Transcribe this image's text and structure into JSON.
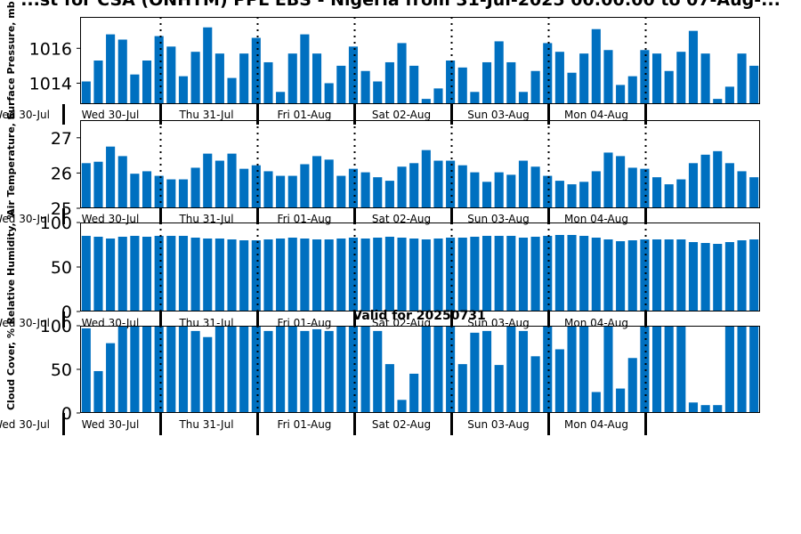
{
  "chart_data": {
    "type": "bar",
    "title": "...st for CSA (ONHTM) PPL EBS  - Nigeria from 31-Jul-2025 00:00:00 to 07-Aug-...",
    "subtitle": "Valid for 20250731",
    "days": [
      "Wed 30-Jul",
      "Thu 31-Jul",
      "Fri 01-Aug",
      "Sat 02-Aug",
      "Sun 03-Aug",
      "Mon 04-Aug"
    ],
    "panels": [
      {
        "ylabel": "Surface Pressure, mb",
        "ylim": [
          1012.8,
          1017.8
        ],
        "yticks": [
          1014,
          1016
        ],
        "values": [
          1014.1,
          1015.3,
          1016.8,
          1016.5,
          1014.5,
          1015.3,
          1016.7,
          1016.1,
          1014.4,
          1015.8,
          1017.2,
          1015.7,
          1014.3,
          1015.7,
          1016.6,
          1015.2,
          1013.5,
          1015.7,
          1016.8,
          1015.7,
          1014.0,
          1015.0,
          1016.1,
          1014.7,
          1014.1,
          1015.2,
          1016.3,
          1015.0,
          1013.1,
          1013.7,
          1015.3,
          1014.9,
          1013.5,
          1015.2,
          1016.4,
          1015.2,
          1013.5,
          1014.7,
          1016.3,
          1015.8,
          1014.6,
          1015.7,
          1017.1,
          1015.9,
          1013.9,
          1014.4,
          1015.9,
          1015.7,
          1014.7,
          1015.8,
          1017.0,
          1015.7,
          1013.1,
          1013.8,
          1015.7,
          1015.0
        ]
      },
      {
        "ylabel": "Air Temperature, C",
        "ylim": [
          25.0,
          27.5
        ],
        "yticks": [
          25,
          26,
          27
        ],
        "values": [
          26.28,
          26.32,
          26.75,
          26.48,
          25.98,
          26.05,
          25.92,
          25.82,
          25.82,
          26.15,
          26.55,
          26.35,
          26.55,
          26.12,
          26.22,
          26.05,
          25.92,
          25.92,
          26.25,
          26.48,
          26.38,
          25.92,
          26.12,
          26.02,
          25.88,
          25.78,
          26.18,
          26.28,
          26.65,
          26.35,
          26.35,
          26.22,
          26.02,
          25.75,
          26.02,
          25.95,
          26.35,
          26.18,
          25.92,
          25.78,
          25.68,
          25.75,
          26.05,
          26.58,
          26.48,
          26.15,
          26.12,
          25.88,
          25.68,
          25.82,
          26.28,
          26.52,
          26.62,
          26.28,
          26.05,
          25.88
        ]
      },
      {
        "ylabel": "Relative Humidity, %",
        "ylim": [
          0,
          100
        ],
        "yticks": [
          0,
          50,
          100
        ],
        "values": [
          85,
          84,
          82,
          84,
          85,
          84,
          85,
          85,
          85,
          83,
          82,
          82,
          81,
          80,
          80,
          81,
          82,
          83,
          82,
          81,
          81,
          82,
          83,
          82,
          83,
          84,
          83,
          82,
          81,
          82,
          83,
          83,
          84,
          85,
          85,
          85,
          83,
          84,
          85,
          86,
          86,
          85,
          83,
          81,
          79,
          80,
          81,
          81,
          81,
          81,
          78,
          77,
          76,
          78,
          80,
          81
        ]
      },
      {
        "ylabel": "Cloud Cover, %",
        "ylim": [
          0,
          100
        ],
        "yticks": [
          0,
          50,
          100
        ],
        "values": [
          97,
          48,
          80,
          100,
          100,
          100,
          100,
          100,
          100,
          94,
          87,
          100,
          100,
          100,
          100,
          94,
          100,
          100,
          94,
          96,
          94,
          100,
          100,
          100,
          94,
          56,
          15,
          45,
          100,
          100,
          100,
          56,
          92,
          94,
          55,
          100,
          94,
          65,
          100,
          73,
          100,
          100,
          24,
          100,
          28,
          63,
          100,
          100,
          100,
          100,
          12,
          9,
          9,
          100,
          100,
          100
        ]
      }
    ]
  }
}
